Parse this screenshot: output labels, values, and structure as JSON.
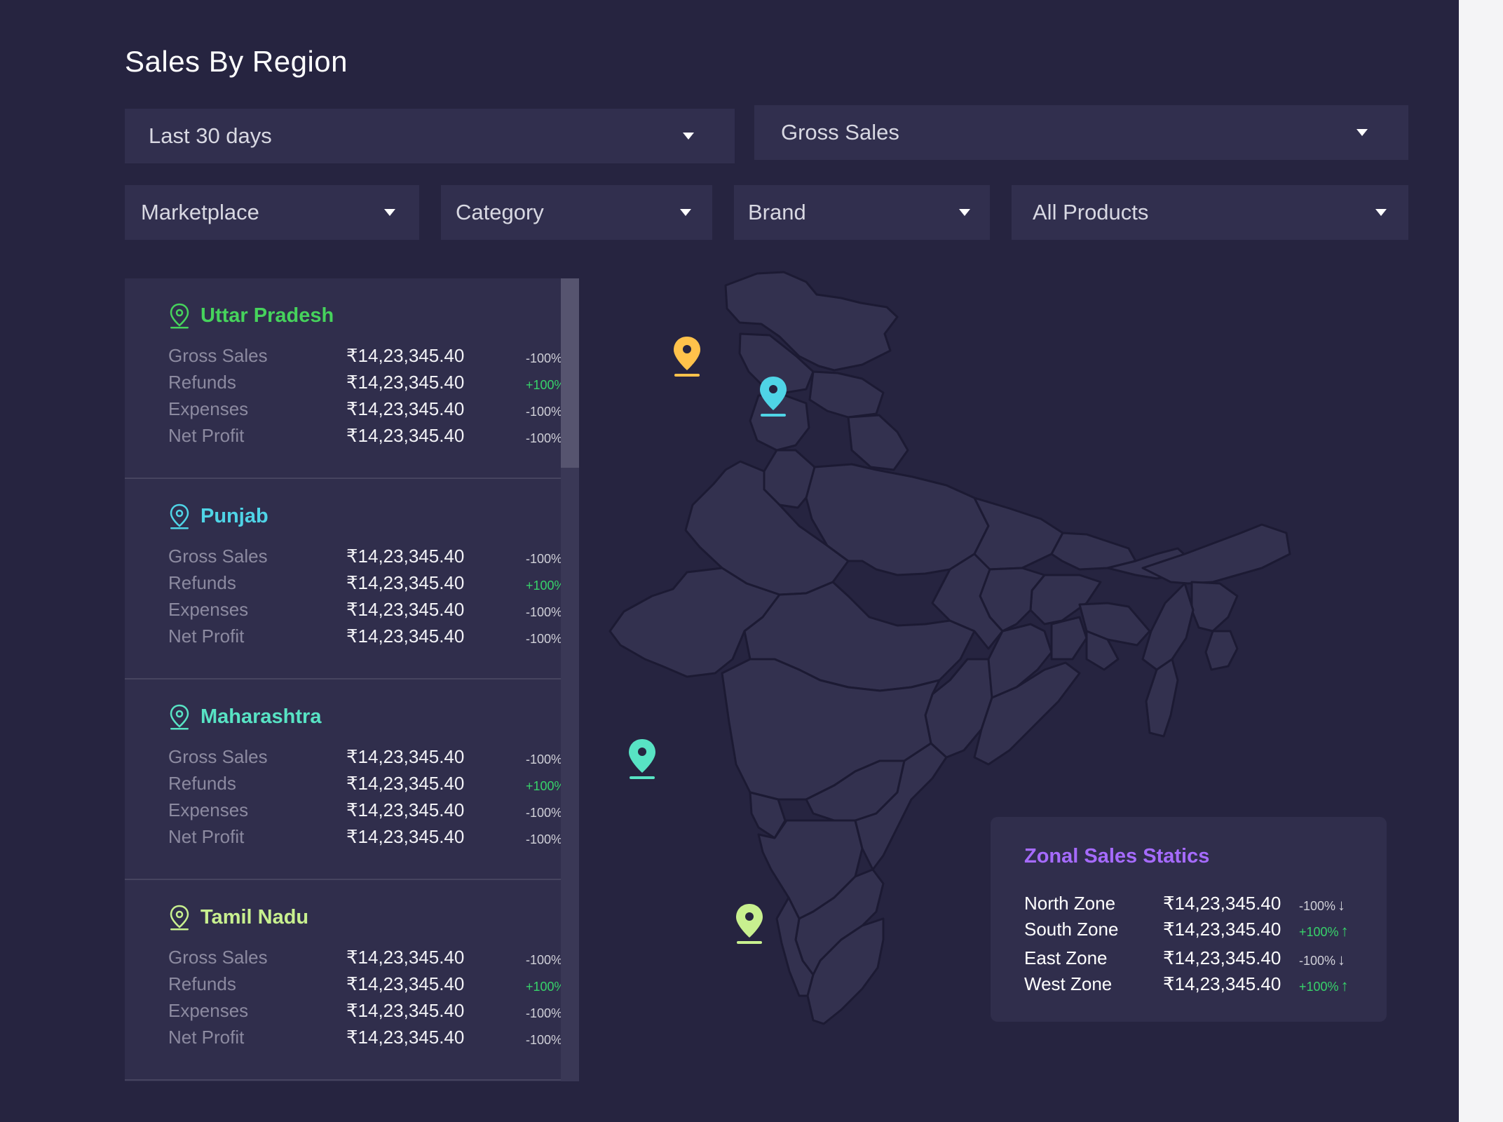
{
  "page_title": "Sales By Region",
  "filters": {
    "period": "Last 30 days",
    "metric": "Gross Sales",
    "marketplace": "Marketplace",
    "category": "Category",
    "brand": "Brand",
    "products": "All Products"
  },
  "colors": {
    "background": "#262440",
    "card": "#302e4c",
    "up": "#37d36a",
    "down": "#d0d0d8",
    "zone_title": "#a66bff",
    "pin_yellow": "#ffc24b",
    "pin_cyan": "#4fd4e6",
    "pin_teal": "#58e3c4",
    "pin_lime": "#c8f08f"
  },
  "regions": [
    {
      "name": "Uttar Pradesh",
      "color": "#46d35c",
      "icon": "location-pin-icon",
      "metrics": [
        {
          "label": "Gross Sales",
          "value": "₹14,23,345.40",
          "change": "-100%",
          "arrow": "↓",
          "dir": "down"
        },
        {
          "label": "Refunds",
          "value": "₹14,23,345.40",
          "change": "+100%",
          "arrow": "↑",
          "dir": "up"
        },
        {
          "label": "Expenses",
          "value": "₹14,23,345.40",
          "change": "-100%",
          "arrow": "↓",
          "dir": "down"
        },
        {
          "label": "Net Profit",
          "value": "₹14,23,345.40",
          "change": "-100%",
          "arrow": "↓",
          "dir": "down"
        }
      ]
    },
    {
      "name": "Punjab",
      "color": "#4fd4e6",
      "icon": "location-pin-icon",
      "metrics": [
        {
          "label": "Gross Sales",
          "value": "₹14,23,345.40",
          "change": "-100%",
          "arrow": "↓",
          "dir": "down"
        },
        {
          "label": "Refunds",
          "value": "₹14,23,345.40",
          "change": "+100%",
          "arrow": "↑",
          "dir": "up"
        },
        {
          "label": "Expenses",
          "value": "₹14,23,345.40",
          "change": "-100%",
          "arrow": "↓",
          "dir": "down"
        },
        {
          "label": "Net Profit",
          "value": "₹14,23,345.40",
          "change": "-100%",
          "arrow": "↓",
          "dir": "down"
        }
      ]
    },
    {
      "name": "Maharashtra",
      "color": "#58e3c4",
      "icon": "location-pin-icon",
      "metrics": [
        {
          "label": "Gross Sales",
          "value": "₹14,23,345.40",
          "change": "-100%",
          "arrow": "↓",
          "dir": "down"
        },
        {
          "label": "Refunds",
          "value": "₹14,23,345.40",
          "change": "+100%",
          "arrow": "↑",
          "dir": "up"
        },
        {
          "label": "Expenses",
          "value": "₹14,23,345.40",
          "change": "-100%",
          "arrow": "↓",
          "dir": "down"
        },
        {
          "label": "Net Profit",
          "value": "₹14,23,345.40",
          "change": "-100%",
          "arrow": "↓",
          "dir": "down"
        }
      ]
    },
    {
      "name": "Tamil Nadu",
      "color": "#c8f08f",
      "icon": "location-pin-icon",
      "metrics": [
        {
          "label": "Gross Sales",
          "value": "₹14,23,345.40",
          "change": "-100%",
          "arrow": "↓",
          "dir": "down"
        },
        {
          "label": "Refunds",
          "value": "₹14,23,345.40",
          "change": "+100%",
          "arrow": "↑",
          "dir": "up"
        },
        {
          "label": "Expenses",
          "value": "₹14,23,345.40",
          "change": "-100%",
          "arrow": "↓",
          "dir": "down"
        },
        {
          "label": "Net Profit",
          "value": "₹14,23,345.40",
          "change": "-100%",
          "arrow": "↓",
          "dir": "down"
        }
      ]
    }
  ],
  "zonal": {
    "title": "Zonal Sales Statics",
    "rows": [
      {
        "label": "North Zone",
        "value": "₹14,23,345.40",
        "change": "-100%",
        "arrow": "↓",
        "dir": "down"
      },
      {
        "label": "South Zone",
        "value": "₹14,23,345.40",
        "change": "+100%",
        "arrow": "↑",
        "dir": "up"
      },
      {
        "label": "East Zone",
        "value": "₹14,23,345.40",
        "change": "-100%",
        "arrow": "↓",
        "dir": "down"
      },
      {
        "label": "West Zone",
        "value": "₹14,23,345.40",
        "change": "+100%",
        "arrow": "↑",
        "dir": "up"
      }
    ]
  },
  "map": {
    "icon": "india-map",
    "pins": [
      {
        "name": "pin-punjab",
        "color": "#ffc24b"
      },
      {
        "name": "pin-uttar-pradesh",
        "color": "#4fd4e6"
      },
      {
        "name": "pin-maharashtra",
        "color": "#58e3c4"
      },
      {
        "name": "pin-tamil-nadu",
        "color": "#c8f08f"
      }
    ]
  }
}
